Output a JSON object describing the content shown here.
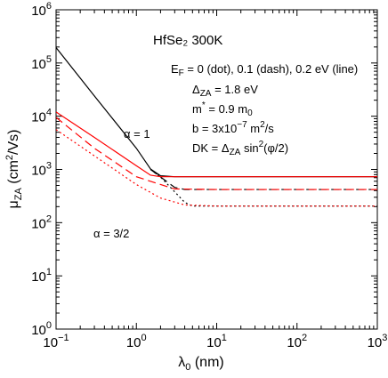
{
  "chart_data": {
    "type": "line",
    "title": "HfSe₂ 300K",
    "xlabel": "λ₀ (nm)",
    "ylabel": "μZA (cm²/Vs)",
    "xscale": "log",
    "yscale": "log",
    "xlim": [
      0.1,
      1000
    ],
    "ylim": [
      1,
      1000000
    ],
    "grid": false,
    "x_ticks": [
      0.1,
      1,
      10,
      100,
      1000
    ],
    "x_tick_labels": [
      {
        "base": "10",
        "exp": "−1"
      },
      {
        "base": "10",
        "exp": "0"
      },
      {
        "base": "10",
        "exp": "1"
      },
      {
        "base": "10",
        "exp": "2"
      },
      {
        "base": "10",
        "exp": "3"
      }
    ],
    "y_ticks": [
      1,
      10,
      100,
      1000,
      10000,
      100000,
      1000000
    ],
    "y_tick_labels": [
      {
        "base": "10",
        "exp": "0"
      },
      {
        "base": "10",
        "exp": "1"
      },
      {
        "base": "10",
        "exp": "2"
      },
      {
        "base": "10",
        "exp": "3"
      },
      {
        "base": "10",
        "exp": "4"
      },
      {
        "base": "10",
        "exp": "5"
      },
      {
        "base": "10",
        "exp": "6"
      }
    ],
    "annotations": {
      "params": [
        "E_F = 0 (dot), 0.1 (dash), 0.2 eV (line)",
        "Δ_ZA = 1.8 eV",
        "m* = 0.9 m_0",
        "b = 3x10^-7 m²/s",
        "DK = Δ_ZA sin²(φ/2)"
      ],
      "alpha_1": "α = 1",
      "alpha_3_2": "α = 3/2"
    },
    "series": [
      {
        "group": "α = 1",
        "style": "solid",
        "color": "#000000",
        "x": [
          0.1,
          0.3,
          1,
          1.5,
          2,
          3,
          10,
          100,
          1000
        ],
        "y": [
          195000,
          24000,
          2500,
          1020,
          760,
          730,
          730,
          730,
          730
        ]
      },
      {
        "group": "α = 1",
        "style": "dashed",
        "color": "#000000",
        "x": [
          1.5,
          2,
          3,
          4,
          10,
          100,
          1000
        ],
        "y": [
          1000,
          720,
          460,
          420,
          420,
          420,
          420
        ]
      },
      {
        "group": "α = 1",
        "style": "dotted",
        "color": "#000000",
        "x": [
          1.5,
          2,
          3,
          4,
          5,
          10,
          100,
          1000
        ],
        "y": [
          1000,
          720,
          380,
          240,
          205,
          205,
          205,
          205
        ]
      },
      {
        "group": "α = 3/2",
        "style": "solid",
        "color": "#ff0000",
        "x": [
          0.1,
          0.3,
          1,
          1.5,
          2,
          10,
          100,
          1000
        ],
        "y": [
          12000,
          4000,
          1170,
          780,
          730,
          730,
          730,
          730
        ]
      },
      {
        "group": "α = 3/2",
        "style": "dashed",
        "color": "#ff0000",
        "x": [
          0.1,
          0.3,
          1,
          2,
          3,
          10,
          100,
          1000
        ],
        "y": [
          9500,
          2500,
          730,
          520,
          430,
          420,
          420,
          420
        ]
      },
      {
        "group": "α = 3/2",
        "style": "dotted",
        "color": "#ff0000",
        "x": [
          0.1,
          0.3,
          1,
          2,
          4,
          10,
          100,
          1000
        ],
        "y": [
          5600,
          1800,
          520,
          290,
          215,
          205,
          205,
          205
        ]
      }
    ]
  }
}
